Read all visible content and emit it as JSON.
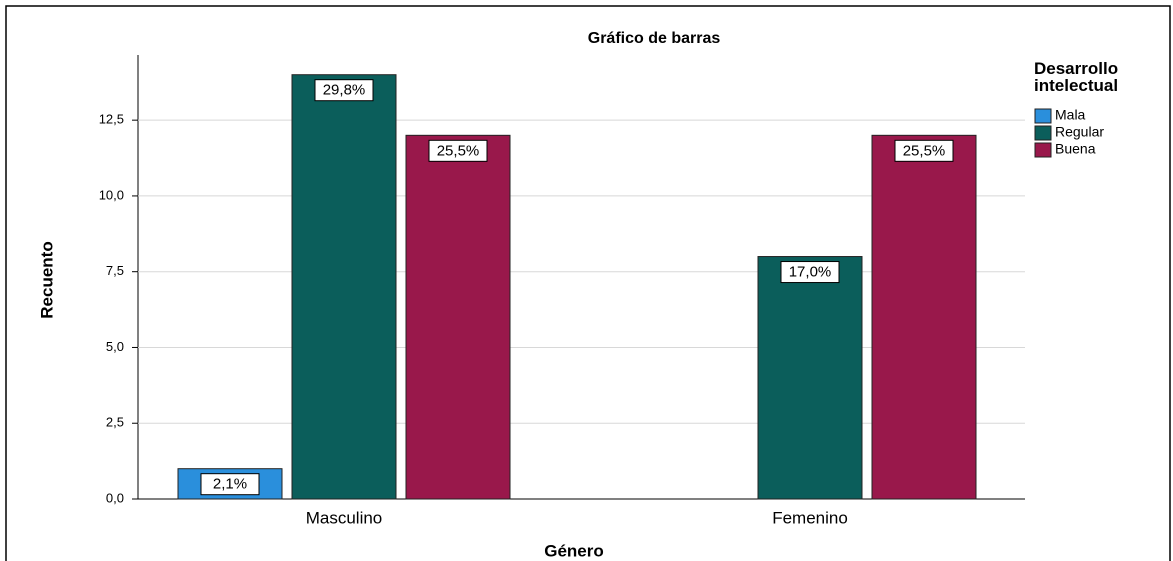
{
  "chart_data": {
    "type": "bar",
    "title": "Gráfico de barras",
    "x_label": "Género",
    "y_label": "Recuento",
    "legend_title": "Desarrollo intelectual",
    "legend_position": "right",
    "categories": [
      "Masculino",
      "Femenino"
    ],
    "series": [
      {
        "name": "Mala",
        "color": "#2a8fdc",
        "values": [
          1,
          null
        ],
        "value_labels": [
          "2,1%",
          null
        ]
      },
      {
        "name": "Regular",
        "color": "#0b5e5b",
        "values": [
          14,
          8
        ],
        "value_labels": [
          "29,8%",
          "17,0%"
        ]
      },
      {
        "name": "Buena",
        "color": "#99184b",
        "values": [
          12,
          12
        ],
        "value_labels": [
          "25,5%",
          "25,5%"
        ]
      }
    ],
    "ylim": [
      0,
      14.65
    ],
    "yticks": [
      {
        "value": 0,
        "label": "0,0"
      },
      {
        "value": 2.5,
        "label": "2,5"
      },
      {
        "value": 5,
        "label": "5,0"
      },
      {
        "value": 7.5,
        "label": "7,5"
      },
      {
        "value": 10,
        "label": "10,0"
      },
      {
        "value": 12.5,
        "label": "12,5"
      }
    ],
    "grid": true
  }
}
